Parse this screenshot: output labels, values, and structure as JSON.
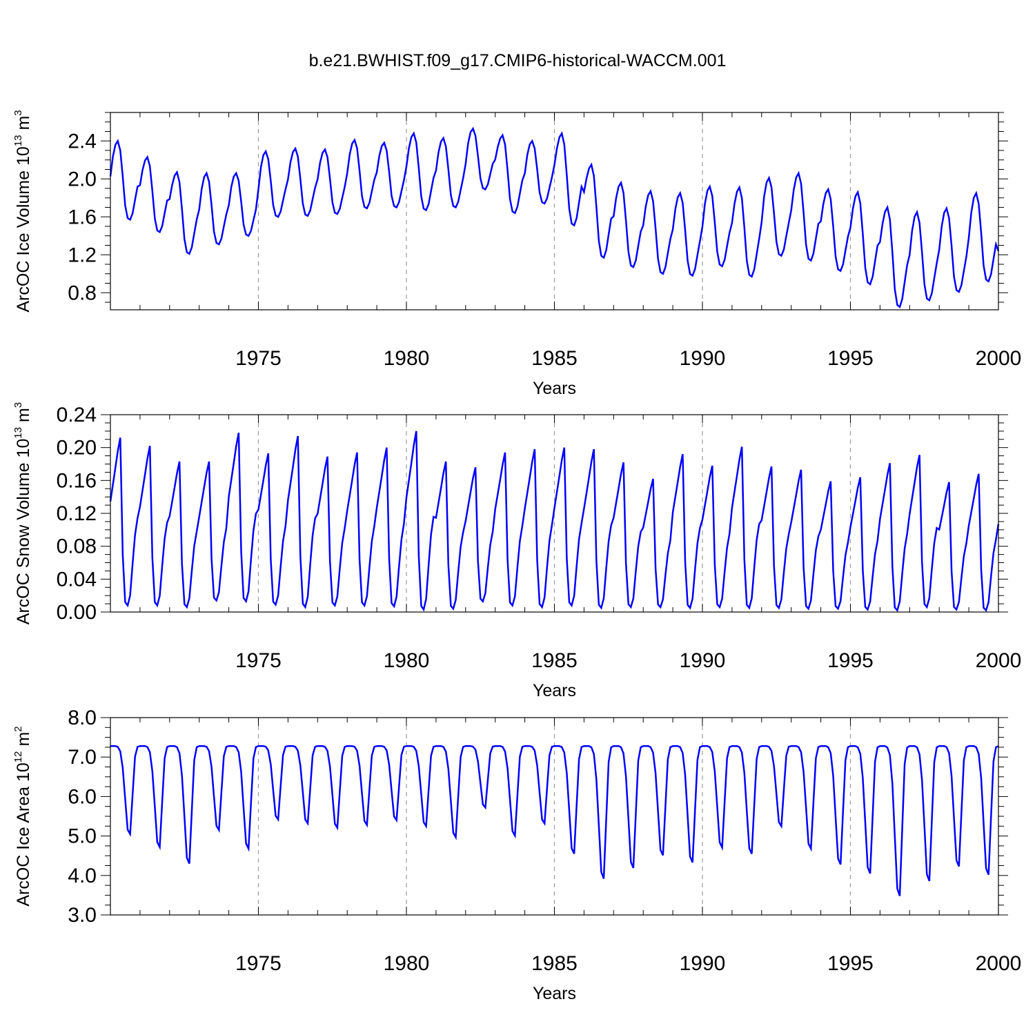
{
  "figure": {
    "title": "b.e21.BWHIST.f09_g17.CMIP6-historical-WACCM.001",
    "line_color": "#0000ff"
  },
  "chart_data": [
    {
      "type": "line",
      "id": "ice-volume",
      "ylabel": "ArcOC Ice Volume 10",
      "ylabel_sup": "13",
      "ylabel_unit": "m",
      "ylabel_unit_sup": "3",
      "xlabel": "Years",
      "xlim": [
        1970,
        2000
      ],
      "ylim": [
        0.62,
        2.7
      ],
      "yticks": [
        0.8,
        1.2,
        1.6,
        2.0,
        2.4
      ],
      "ytick_labels": [
        "0.8",
        "1.2",
        "1.6",
        "2.0",
        "2.4"
      ],
      "xticks": [
        1975,
        1980,
        1985,
        1990,
        1995,
        2000
      ],
      "xtick_labels": [
        "1975",
        "1980",
        "1985",
        "1990",
        "1995",
        "2000"
      ],
      "annual_max": [
        2.4,
        2.23,
        2.07,
        2.06,
        2.06,
        2.29,
        2.32,
        2.31,
        2.41,
        2.38,
        2.48,
        2.43,
        2.53,
        2.46,
        2.4,
        2.48,
        2.15,
        1.96,
        1.87,
        1.85,
        1.92,
        1.91,
        2.01,
        2.06,
        1.89,
        1.86,
        1.7,
        1.65,
        1.69,
        1.85
      ],
      "annual_min": [
        1.57,
        1.44,
        1.21,
        1.31,
        1.4,
        1.6,
        1.61,
        1.63,
        1.69,
        1.7,
        1.67,
        1.7,
        1.89,
        1.64,
        1.74,
        1.51,
        1.17,
        1.07,
        1.0,
        0.98,
        1.08,
        0.97,
        1.19,
        1.14,
        1.03,
        0.89,
        0.65,
        0.72,
        0.81,
        0.92
      ],
      "end_value": 1.24
    },
    {
      "type": "line",
      "id": "snow-volume",
      "ylabel": "ArcOC Snow Volume 10",
      "ylabel_sup": "13",
      "ylabel_unit": "m",
      "ylabel_unit_sup": "3",
      "xlabel": "Years",
      "xlim": [
        1970,
        2000
      ],
      "ylim": [
        0.0,
        0.24
      ],
      "yticks": [
        0.0,
        0.04,
        0.08,
        0.12,
        0.16,
        0.2,
        0.24
      ],
      "ytick_labels": [
        "0.00",
        "0.04",
        "0.08",
        "0.12",
        "0.16",
        "0.20",
        "0.24"
      ],
      "xticks": [
        1975,
        1980,
        1985,
        1990,
        1995,
        2000
      ],
      "xtick_labels": [
        "1975",
        "1980",
        "1985",
        "1990",
        "1995",
        "2000"
      ],
      "annual_max": [
        0.212,
        0.202,
        0.183,
        0.183,
        0.218,
        0.193,
        0.214,
        0.189,
        0.194,
        0.2,
        0.22,
        0.183,
        0.176,
        0.194,
        0.198,
        0.2,
        0.198,
        0.182,
        0.162,
        0.192,
        0.178,
        0.201,
        0.177,
        0.173,
        0.159,
        0.164,
        0.181,
        0.191,
        0.158,
        0.168
      ],
      "annual_min": [
        0.008,
        0.008,
        0.006,
        0.014,
        0.013,
        0.009,
        0.006,
        0.008,
        0.008,
        0.007,
        0.003,
        0.004,
        0.013,
        0.008,
        0.006,
        0.008,
        0.005,
        0.006,
        0.006,
        0.005,
        0.006,
        0.005,
        0.005,
        0.004,
        0.004,
        0.003,
        0.002,
        0.006,
        0.003,
        0.002
      ],
      "end_value": 0.107
    },
    {
      "type": "line",
      "id": "ice-area",
      "ylabel": "ArcOC Ice Area 10",
      "ylabel_sup": "12",
      "ylabel_unit": "m",
      "ylabel_unit_sup": "2",
      "xlabel": "Years",
      "xlim": [
        1970,
        2000
      ],
      "ylim": [
        3.0,
        8.0
      ],
      "yticks": [
        3.0,
        4.0,
        5.0,
        6.0,
        7.0,
        8.0
      ],
      "ytick_labels": [
        "3.0",
        "4.0",
        "5.0",
        "6.0",
        "7.0",
        "8.0"
      ],
      "xticks": [
        1975,
        1980,
        1985,
        1990,
        1995,
        2000
      ],
      "xtick_labels": [
        "1975",
        "1980",
        "1985",
        "1990",
        "1995",
        "2000"
      ],
      "annual_max": [
        7.28,
        7.28,
        7.28,
        7.28,
        7.28,
        7.28,
        7.28,
        7.28,
        7.28,
        7.28,
        7.28,
        7.28,
        7.28,
        7.28,
        7.28,
        7.28,
        7.28,
        7.28,
        7.28,
        7.28,
        7.28,
        7.28,
        7.28,
        7.28,
        7.28,
        7.28,
        7.28,
        7.28,
        7.28,
        7.28
      ],
      "annual_min": [
        5.05,
        4.72,
        4.3,
        5.15,
        4.68,
        5.42,
        5.32,
        5.21,
        5.28,
        5.4,
        5.25,
        4.97,
        5.72,
        5.01,
        5.32,
        4.55,
        3.92,
        4.19,
        4.51,
        4.33,
        4.71,
        4.55,
        5.25,
        4.68,
        4.28,
        4.05,
        3.48,
        3.86,
        4.23,
        4.02
      ],
      "end_value": 7.28
    }
  ]
}
